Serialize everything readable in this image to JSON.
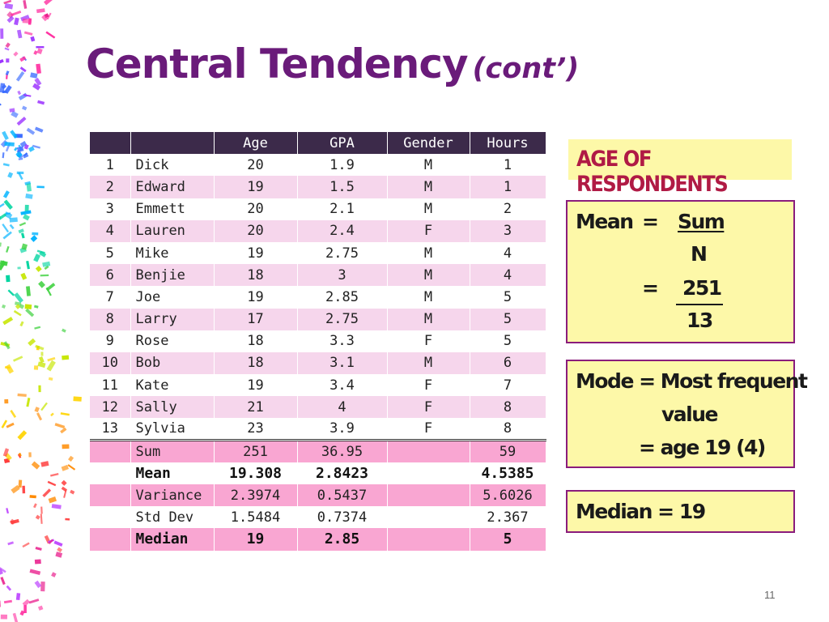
{
  "slide": {
    "title_main": "Central Tendency",
    "title_sub": "(cont’)",
    "page_number": "11"
  },
  "table": {
    "headers": [
      "",
      "",
      "Age",
      "GPA",
      "Gender",
      "Hours"
    ],
    "rows": [
      [
        "1",
        "Dick",
        "20",
        "1.9",
        "M",
        "1"
      ],
      [
        "2",
        "Edward",
        "19",
        "1.5",
        "M",
        "1"
      ],
      [
        "3",
        "Emmett",
        "20",
        "2.1",
        "M",
        "2"
      ],
      [
        "4",
        "Lauren",
        "20",
        "2.4",
        "F",
        "3"
      ],
      [
        "5",
        "Mike",
        "19",
        "2.75",
        "M",
        "4"
      ],
      [
        "6",
        "Benjie",
        "18",
        "3",
        "M",
        "4"
      ],
      [
        "7",
        "Joe",
        "19",
        "2.85",
        "M",
        "5"
      ],
      [
        "8",
        "Larry",
        "17",
        "2.75",
        "M",
        "5"
      ],
      [
        "9",
        "Rose",
        "18",
        "3.3",
        "F",
        "5"
      ],
      [
        "10",
        "Bob",
        "18",
        "3.1",
        "M",
        "6"
      ],
      [
        "11",
        "Kate",
        "19",
        "3.4",
        "F",
        "7"
      ],
      [
        "12",
        "Sally",
        "21",
        "4",
        "F",
        "8"
      ],
      [
        "13",
        "Sylvia",
        "23",
        "3.9",
        "F",
        "8"
      ]
    ],
    "summary": {
      "sum": {
        "label": "Sum",
        "age": "251",
        "gpa": "36.95",
        "gender": "",
        "hours": "59"
      },
      "mean": {
        "label": "Mean",
        "age": "19.308",
        "gpa": "2.8423",
        "gender": "",
        "hours": "4.5385"
      },
      "variance": {
        "label": "Variance",
        "age": "2.3974",
        "gpa": "0.5437",
        "gender": "",
        "hours": "5.6026"
      },
      "stddev": {
        "label": "Std Dev",
        "age": "1.5484",
        "gpa": "0.7374",
        "gender": "",
        "hours": "2.367"
      },
      "median": {
        "label": "Median",
        "age": "19",
        "gpa": "2.85",
        "gender": "",
        "hours": "5"
      }
    }
  },
  "boxes": {
    "age_title": "AGE OF RESPONDENTS",
    "mean": {
      "label": "Mean",
      "eq1": "=",
      "numerator": "Sum",
      "denominator": "N",
      "eq2": "=",
      "value_numerator": "251",
      "value_denominator": "13"
    },
    "mode": {
      "line1": "Mode  = Most frequent",
      "line2": "value",
      "line3": "= age 19 (4)"
    },
    "median": "Median  = 19"
  },
  "colors": {
    "title": "#6a1b7a",
    "header_bg": "#3c2a4a",
    "row_alt": "#f6d6ec",
    "summary_pink": "#f9a6d2",
    "box_fill": "#fdf8a8",
    "box_border": "#8a1c7c",
    "box_title_text": "#b01a45"
  }
}
